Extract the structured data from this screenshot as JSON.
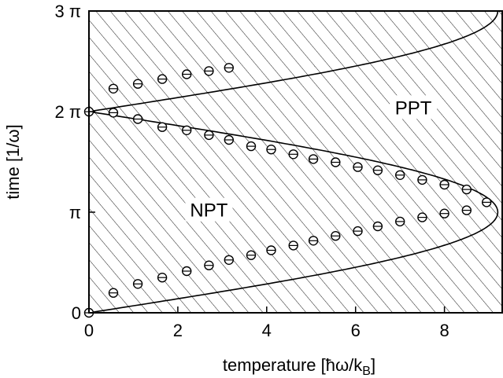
{
  "chart_data": {
    "type": "scatter",
    "title": "",
    "xlabel": "temperature [ħω/k",
    "xlabel_sub": "B",
    "xlabel_end": "]",
    "ylabel": "time [1/ω]",
    "xlim": [
      0,
      9.3
    ],
    "ylim": [
      0,
      9.42478
    ],
    "x_ticks": [
      {
        "value": 0,
        "label": "0"
      },
      {
        "value": 2,
        "label": "2"
      },
      {
        "value": 4,
        "label": "4"
      },
      {
        "value": 6,
        "label": "6"
      },
      {
        "value": 8,
        "label": "8"
      }
    ],
    "y_ticks": [
      {
        "value": 0,
        "label": "0"
      },
      {
        "value": 3.14159,
        "label": "π"
      },
      {
        "value": 6.28319,
        "label": "2 π"
      },
      {
        "value": 9.42478,
        "label": "3 π"
      }
    ],
    "region_labels": [
      {
        "text": "PPT",
        "x": 7.3,
        "y": 6.3
      },
      {
        "text": "NPT",
        "x": 2.7,
        "y": 3.1
      }
    ],
    "boundary_curve": {
      "formula": "T(t) = 9.2 * |sin(t/2)|",
      "t_start": 0,
      "t_end": 9.42478
    },
    "series": [
      {
        "marker": "open-circle",
        "x": [
          0,
          0.55,
          1.1,
          1.65,
          2.2,
          2.7,
          3.15,
          3.65,
          4.1,
          4.6,
          5.05,
          5.55,
          6.05,
          6.5,
          7.0,
          7.5,
          8.0,
          8.5,
          8.95,
          8.5,
          8.0,
          7.5,
          7.0,
          6.5,
          6.05,
          5.55,
          5.05,
          4.6,
          4.1,
          3.65,
          3.15,
          2.7,
          2.2,
          1.65,
          1.1,
          0.55,
          0,
          0.55,
          1.1,
          1.65,
          2.2,
          2.7,
          3.15
        ],
        "y": [
          0,
          0.62,
          0.9,
          1.1,
          1.3,
          1.48,
          1.65,
          1.8,
          1.95,
          2.1,
          2.25,
          2.4,
          2.55,
          2.7,
          2.85,
          2.98,
          3.1,
          3.2,
          3.45,
          3.85,
          4.0,
          4.15,
          4.3,
          4.45,
          4.55,
          4.7,
          4.8,
          4.95,
          5.1,
          5.2,
          5.4,
          5.55,
          5.7,
          5.8,
          6.05,
          6.25,
          6.28,
          7.0,
          7.15,
          7.3,
          7.45,
          7.55,
          7.65
        ]
      }
    ]
  }
}
